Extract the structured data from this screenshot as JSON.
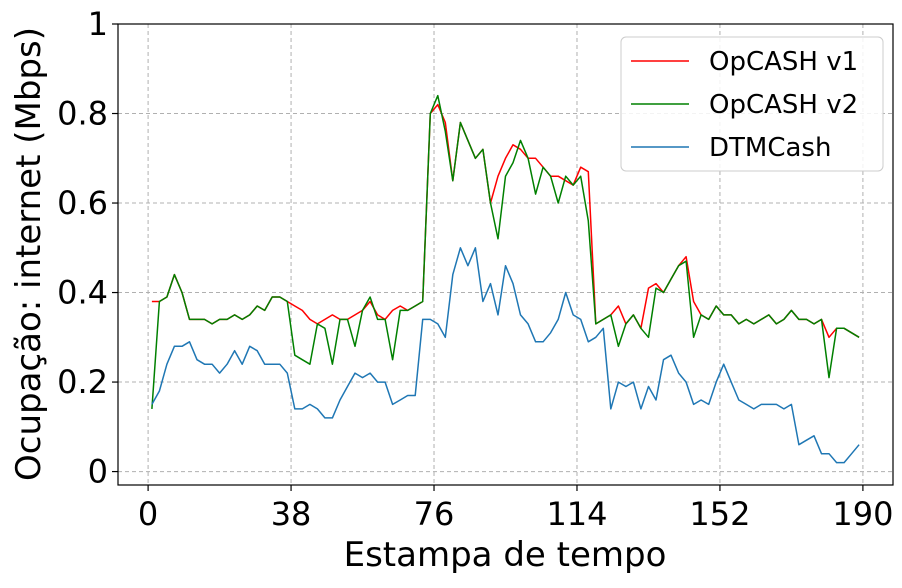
{
  "chart_data": {
    "type": "line",
    "xlabel": "Estampa de tempo",
    "ylabel": "Ocupação: internet (Mbps)",
    "xlim": [
      -8,
      198
    ],
    "ylim": [
      -0.03,
      1.0
    ],
    "xticks": [
      0,
      38,
      76,
      114,
      152,
      190
    ],
    "yticks": [
      0,
      0.2,
      0.4,
      0.6,
      0.8,
      1
    ],
    "ytick_labels": [
      "0",
      "0.2",
      "0.4",
      "0.6",
      "0.8",
      "1"
    ],
    "grid": true,
    "legend": "top-right",
    "x": [
      1,
      3,
      5,
      7,
      9,
      11,
      13,
      15,
      17,
      19,
      21,
      23,
      25,
      27,
      29,
      31,
      33,
      35,
      37,
      39,
      41,
      43,
      45,
      47,
      49,
      51,
      53,
      55,
      57,
      59,
      61,
      63,
      65,
      67,
      69,
      71,
      73,
      75,
      77,
      79,
      81,
      83,
      85,
      87,
      89,
      91,
      93,
      95,
      97,
      99,
      101,
      103,
      105,
      107,
      109,
      111,
      113,
      115,
      117,
      119,
      121,
      123,
      125,
      127,
      129,
      131,
      133,
      135,
      137,
      139,
      141,
      143,
      145,
      147,
      149,
      151,
      153,
      155,
      157,
      159,
      161,
      163,
      165,
      167,
      169,
      171,
      173,
      175,
      177,
      179,
      181,
      183,
      185,
      187,
      189
    ],
    "series": [
      {
        "name": "OpCASH v1",
        "color": "#ff0000",
        "values": [
          0.38,
          0.38,
          0.39,
          0.44,
          0.4,
          0.34,
          0.34,
          0.34,
          0.33,
          0.34,
          0.34,
          0.35,
          0.34,
          0.35,
          0.37,
          0.36,
          0.39,
          0.39,
          0.38,
          0.37,
          0.36,
          0.34,
          0.33,
          0.34,
          0.35,
          0.34,
          0.34,
          0.35,
          0.36,
          0.38,
          0.35,
          0.34,
          0.36,
          0.37,
          0.36,
          0.37,
          0.38,
          0.8,
          0.82,
          0.78,
          0.65,
          0.78,
          0.74,
          0.7,
          0.72,
          0.6,
          0.66,
          0.7,
          0.73,
          0.72,
          0.7,
          0.7,
          0.68,
          0.66,
          0.66,
          0.65,
          0.64,
          0.68,
          0.67,
          0.33,
          0.34,
          0.35,
          0.37,
          0.33,
          0.35,
          0.32,
          0.41,
          0.42,
          0.4,
          0.43,
          0.46,
          0.48,
          0.38,
          0.35,
          0.34,
          0.37,
          0.35,
          0.35,
          0.33,
          0.34,
          0.33,
          0.34,
          0.35,
          0.33,
          0.34,
          0.36,
          0.34,
          0.34,
          0.33,
          0.34,
          0.3,
          0.32,
          0.32,
          0.31,
          0.3
        ]
      },
      {
        "name": "OpCASH v2",
        "color": "#008000",
        "values": [
          0.14,
          0.38,
          0.39,
          0.44,
          0.4,
          0.34,
          0.34,
          0.34,
          0.33,
          0.34,
          0.34,
          0.35,
          0.34,
          0.35,
          0.37,
          0.36,
          0.39,
          0.39,
          0.38,
          0.26,
          0.25,
          0.24,
          0.33,
          0.32,
          0.24,
          0.34,
          0.34,
          0.28,
          0.36,
          0.39,
          0.34,
          0.34,
          0.25,
          0.36,
          0.36,
          0.37,
          0.38,
          0.8,
          0.84,
          0.76,
          0.65,
          0.78,
          0.74,
          0.7,
          0.72,
          0.6,
          0.52,
          0.66,
          0.69,
          0.74,
          0.7,
          0.62,
          0.68,
          0.66,
          0.6,
          0.66,
          0.64,
          0.66,
          0.56,
          0.33,
          0.34,
          0.35,
          0.28,
          0.33,
          0.35,
          0.32,
          0.3,
          0.41,
          0.4,
          0.43,
          0.46,
          0.47,
          0.3,
          0.35,
          0.34,
          0.37,
          0.35,
          0.35,
          0.33,
          0.34,
          0.33,
          0.34,
          0.35,
          0.33,
          0.34,
          0.36,
          0.34,
          0.34,
          0.33,
          0.34,
          0.21,
          0.32,
          0.32,
          0.31,
          0.3
        ]
      },
      {
        "name": "DTMCash",
        "color": "#1f77b4",
        "values": [
          0.15,
          0.18,
          0.24,
          0.28,
          0.28,
          0.29,
          0.25,
          0.24,
          0.24,
          0.22,
          0.24,
          0.27,
          0.24,
          0.28,
          0.27,
          0.24,
          0.24,
          0.24,
          0.22,
          0.14,
          0.14,
          0.15,
          0.14,
          0.12,
          0.12,
          0.16,
          0.19,
          0.22,
          0.21,
          0.22,
          0.2,
          0.2,
          0.15,
          0.16,
          0.17,
          0.17,
          0.34,
          0.34,
          0.33,
          0.3,
          0.44,
          0.5,
          0.46,
          0.5,
          0.38,
          0.42,
          0.35,
          0.46,
          0.42,
          0.35,
          0.33,
          0.29,
          0.29,
          0.31,
          0.34,
          0.4,
          0.35,
          0.34,
          0.29,
          0.3,
          0.32,
          0.14,
          0.2,
          0.19,
          0.2,
          0.14,
          0.19,
          0.16,
          0.25,
          0.26,
          0.22,
          0.2,
          0.15,
          0.16,
          0.15,
          0.2,
          0.24,
          0.2,
          0.16,
          0.15,
          0.14,
          0.15,
          0.15,
          0.15,
          0.14,
          0.15,
          0.06,
          0.07,
          0.08,
          0.04,
          0.04,
          0.02,
          0.02,
          0.04,
          0.06
        ]
      }
    ]
  }
}
